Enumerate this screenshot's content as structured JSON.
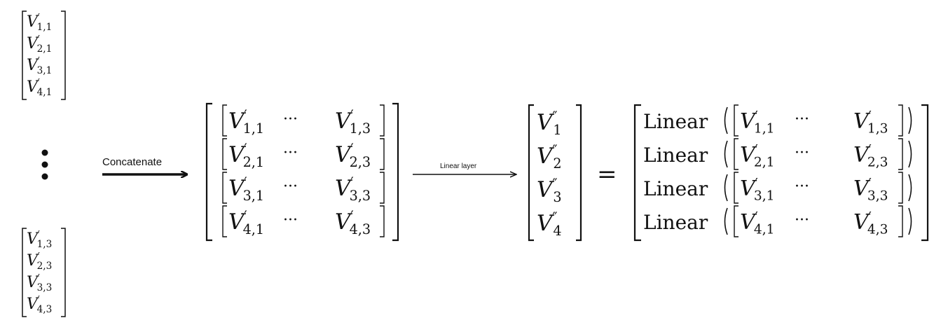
{
  "labels": {
    "concatenate": "Concatenate",
    "linear_layer": "Linear layer"
  },
  "symbols": {
    "vdots": "⋮",
    "cdots": "···",
    "equals": "=",
    "linear_fn": "Linear",
    "prime": "′",
    "double_prime": "″"
  },
  "vectors": {
    "first_column": [
      "V′1,1",
      "V′2,1",
      "V′3,1",
      "V′4,1"
    ],
    "last_column": [
      "V′1,3",
      "V′2,3",
      "V′3,3",
      "V′4,3"
    ]
  },
  "concatenated_rows": [
    {
      "first": "V′1,1",
      "last": "V′1,3"
    },
    {
      "first": "V′2,1",
      "last": "V′2,3"
    },
    {
      "first": "V′3,1",
      "last": "V′3,3"
    },
    {
      "first": "V′4,1",
      "last": "V′4,3"
    }
  ],
  "outputs": [
    "V″1",
    "V″2",
    "V″3",
    "V″4"
  ]
}
